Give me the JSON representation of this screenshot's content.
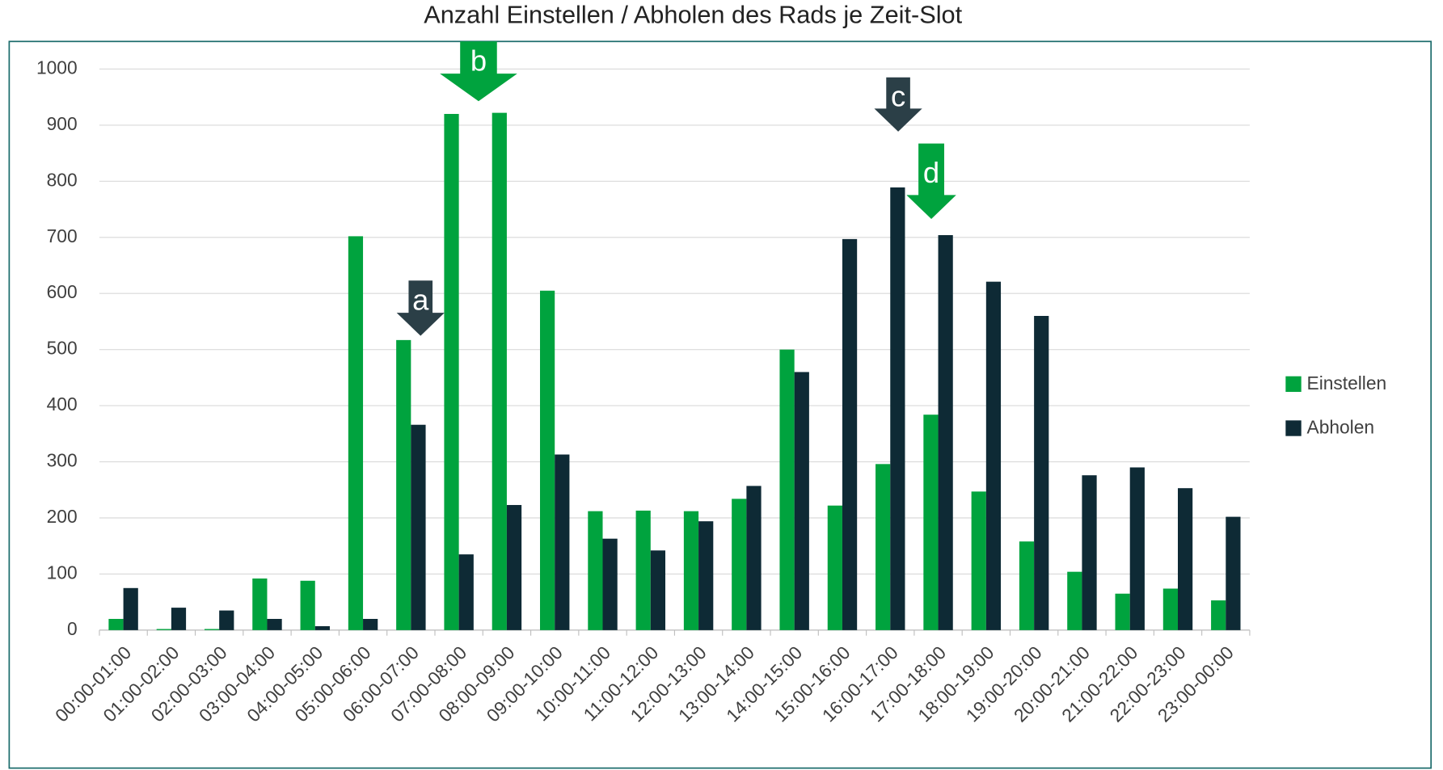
{
  "chart_data": {
    "type": "bar",
    "title": "Anzahl Einstellen / Abholen des Rads je Zeit-Slot",
    "categories": [
      "00:00-01:00",
      "01:00-02:00",
      "02:00-03:00",
      "03:00-04:00",
      "04:00-05:00",
      "05:00-06:00",
      "06:00-07:00",
      "07:00-08:00",
      "08:00-09:00",
      "09:00-10:00",
      "10:00-11:00",
      "11:00-12:00",
      "12:00-13:00",
      "13:00-14:00",
      "14:00-15:00",
      "15:00-16:00",
      "16:00-17:00",
      "17:00-18:00",
      "18:00-19:00",
      "19:00-20:00",
      "20:00-21:00",
      "21:00-22:00",
      "22:00-23:00",
      "23:00-00:00"
    ],
    "series": [
      {
        "name": "Einstellen",
        "color": "#00a33e",
        "values": [
          20,
          2,
          2,
          92,
          88,
          702,
          517,
          920,
          922,
          605,
          212,
          213,
          212,
          234,
          500,
          222,
          296,
          384,
          247,
          158,
          104,
          65,
          74,
          53
        ]
      },
      {
        "name": "Abholen",
        "color": "#0e2a35",
        "values": [
          75,
          40,
          35,
          20,
          7,
          20,
          366,
          135,
          223,
          313,
          163,
          142,
          194,
          257,
          460,
          697,
          789,
          704,
          621,
          560,
          276,
          290,
          253,
          202
        ]
      }
    ],
    "ylim": [
      0,
      1000
    ],
    "yticks": [
      0,
      100,
      200,
      300,
      400,
      500,
      600,
      700,
      800,
      900,
      1000
    ],
    "grid": true,
    "legend": "right",
    "annotations": [
      {
        "text": "a",
        "color": "#2b3f47"
      },
      {
        "text": "b",
        "color": "#00a33e"
      },
      {
        "text": "c",
        "color": "#2b3f47"
      },
      {
        "text": "d",
        "color": "#00a33e"
      }
    ]
  }
}
